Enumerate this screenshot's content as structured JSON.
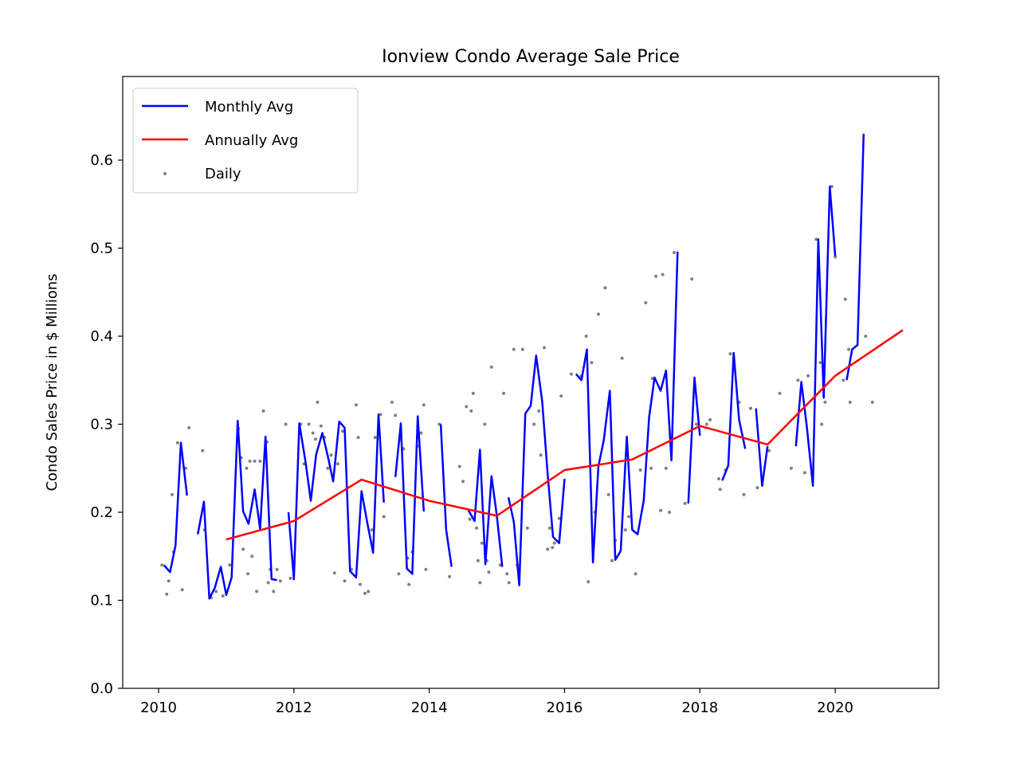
{
  "chart_data": {
    "type": "line",
    "title": "Ionview Condo Average Sale Price",
    "xlabel": "",
    "ylabel": "Condo Sales Price in $ Millions",
    "xlim": [
      2009.47,
      2021.53
    ],
    "ylim": [
      0.0,
      0.695
    ],
    "xticks": [
      2010,
      2012,
      2014,
      2016,
      2018,
      2020
    ],
    "xtick_labels": [
      "2010",
      "2012",
      "2014",
      "2016",
      "2018",
      "2020"
    ],
    "yticks": [
      0.0,
      0.1,
      0.2,
      0.3,
      0.4,
      0.5,
      0.6
    ],
    "ytick_labels": [
      "0.0",
      "0.1",
      "0.2",
      "0.3",
      "0.4",
      "0.5",
      "0.6"
    ],
    "grid": false,
    "legend": {
      "placement": "top-left",
      "entries": [
        "Monthly Avg",
        "Annually Avg",
        "Daily"
      ]
    },
    "colors": {
      "monthly": "#0000ff",
      "annual": "#ff0000",
      "daily": "#808080"
    },
    "series": [
      {
        "name": "Monthly Avg",
        "kind": "line",
        "segments": [
          [
            [
              2010.08,
              0.14
            ],
            [
              2010.17,
              0.132
            ],
            [
              2010.25,
              0.162
            ],
            [
              2010.33,
              0.279
            ],
            [
              2010.42,
              0.219
            ]
          ],
          [
            [
              2010.58,
              0.175
            ],
            [
              2010.67,
              0.212
            ],
            [
              2010.75,
              0.102
            ],
            [
              2010.83,
              0.114
            ],
            [
              2010.92,
              0.138
            ],
            [
              2011.0,
              0.106
            ],
            [
              2011.08,
              0.126
            ],
            [
              2011.17,
              0.304
            ],
            [
              2011.25,
              0.201
            ],
            [
              2011.33,
              0.187
            ],
            [
              2011.42,
              0.226
            ],
            [
              2011.5,
              0.181
            ],
            [
              2011.58,
              0.286
            ],
            [
              2011.67,
              0.124
            ],
            [
              2011.75,
              0.123
            ]
          ],
          [
            [
              2011.92,
              0.2
            ],
            [
              2012.0,
              0.124
            ],
            [
              2012.08,
              0.301
            ],
            [
              2012.17,
              0.258
            ],
            [
              2012.25,
              0.213
            ],
            [
              2012.33,
              0.266
            ],
            [
              2012.42,
              0.29
            ],
            [
              2012.5,
              0.264
            ],
            [
              2012.58,
              0.235
            ],
            [
              2012.67,
              0.303
            ],
            [
              2012.75,
              0.296
            ],
            [
              2012.83,
              0.133
            ],
            [
              2012.92,
              0.126
            ],
            [
              2013.0,
              0.224
            ],
            [
              2013.08,
              0.19
            ],
            [
              2013.17,
              0.154
            ],
            [
              2013.25,
              0.311
            ],
            [
              2013.33,
              0.211
            ]
          ],
          [
            [
              2013.5,
              0.24
            ],
            [
              2013.58,
              0.301
            ],
            [
              2013.67,
              0.136
            ],
            [
              2013.75,
              0.13
            ],
            [
              2013.83,
              0.309
            ],
            [
              2013.92,
              0.201
            ]
          ],
          [
            [
              2014.17,
              0.3
            ],
            [
              2014.25,
              0.18
            ],
            [
              2014.33,
              0.138
            ]
          ],
          [
            [
              2014.58,
              0.202
            ],
            [
              2014.67,
              0.19
            ],
            [
              2014.75,
              0.271
            ],
            [
              2014.83,
              0.141
            ],
            [
              2014.92,
              0.241
            ],
            [
              2015.0,
              0.196
            ],
            [
              2015.08,
              0.138
            ]
          ],
          [
            [
              2015.17,
              0.217
            ],
            [
              2015.25,
              0.189
            ],
            [
              2015.33,
              0.117
            ],
            [
              2015.42,
              0.312
            ],
            [
              2015.5,
              0.321
            ],
            [
              2015.58,
              0.378
            ],
            [
              2015.67,
              0.326
            ],
            [
              2015.75,
              0.244
            ],
            [
              2015.83,
              0.172
            ],
            [
              2015.92,
              0.165
            ],
            [
              2016.0,
              0.238
            ]
          ],
          [
            [
              2016.17,
              0.357
            ],
            [
              2016.25,
              0.35
            ],
            [
              2016.33,
              0.385
            ],
            [
              2016.42,
              0.143
            ],
            [
              2016.5,
              0.252
            ],
            [
              2016.58,
              0.282
            ],
            [
              2016.67,
              0.338
            ],
            [
              2016.75,
              0.146
            ],
            [
              2016.83,
              0.156
            ],
            [
              2016.92,
              0.286
            ],
            [
              2017.0,
              0.18
            ],
            [
              2017.08,
              0.175
            ],
            [
              2017.17,
              0.213
            ],
            [
              2017.25,
              0.308
            ],
            [
              2017.33,
              0.353
            ],
            [
              2017.42,
              0.338
            ],
            [
              2017.5,
              0.361
            ],
            [
              2017.58,
              0.259
            ],
            [
              2017.67,
              0.496
            ]
          ],
          [
            [
              2017.83,
              0.21
            ],
            [
              2017.92,
              0.353
            ],
            [
              2018.0,
              0.287
            ]
          ],
          [
            [
              2018.33,
              0.236
            ],
            [
              2018.42,
              0.253
            ],
            [
              2018.5,
              0.381
            ],
            [
              2018.58,
              0.305
            ],
            [
              2018.67,
              0.272
            ]
          ],
          [
            [
              2018.83,
              0.318
            ],
            [
              2018.92,
              0.23
            ],
            [
              2019.0,
              0.275
            ]
          ],
          [
            [
              2019.42,
              0.275
            ],
            [
              2019.5,
              0.348
            ],
            [
              2019.58,
              0.298
            ],
            [
              2019.67,
              0.23
            ],
            [
              2019.75,
              0.51
            ],
            [
              2019.83,
              0.33
            ],
            [
              2019.92,
              0.57
            ],
            [
              2020.0,
              0.491
            ]
          ],
          [
            [
              2020.17,
              0.35
            ],
            [
              2020.25,
              0.385
            ],
            [
              2020.33,
              0.39
            ],
            [
              2020.42,
              0.63
            ]
          ]
        ]
      },
      {
        "name": "Annually Avg",
        "kind": "line",
        "x": [
          2011,
          2012,
          2013,
          2014,
          2015,
          2016,
          2017,
          2018,
          2019,
          2020,
          2021
        ],
        "values": [
          0.169,
          0.19,
          0.237,
          0.213,
          0.196,
          0.248,
          0.26,
          0.298,
          0.277,
          0.355,
          0.407
        ]
      },
      {
        "name": "Daily",
        "kind": "scatter",
        "points": [
          [
            2010.05,
            0.14
          ],
          [
            2010.12,
            0.107
          ],
          [
            2010.15,
            0.122
          ],
          [
            2010.2,
            0.22
          ],
          [
            2010.22,
            0.155
          ],
          [
            2010.28,
            0.279
          ],
          [
            2010.35,
            0.112
          ],
          [
            2010.4,
            0.25
          ],
          [
            2010.45,
            0.296
          ],
          [
            2010.65,
            0.27
          ],
          [
            2010.68,
            0.18
          ],
          [
            2010.78,
            0.103
          ],
          [
            2010.85,
            0.11
          ],
          [
            2010.95,
            0.105
          ],
          [
            2011.05,
            0.14
          ],
          [
            2011.18,
            0.295
          ],
          [
            2011.22,
            0.262
          ],
          [
            2011.25,
            0.158
          ],
          [
            2011.3,
            0.25
          ],
          [
            2011.32,
            0.13
          ],
          [
            2011.35,
            0.258
          ],
          [
            2011.38,
            0.15
          ],
          [
            2011.42,
            0.258
          ],
          [
            2011.45,
            0.11
          ],
          [
            2011.5,
            0.258
          ],
          [
            2011.55,
            0.315
          ],
          [
            2011.6,
            0.28
          ],
          [
            2011.62,
            0.12
          ],
          [
            2011.65,
            0.135
          ],
          [
            2011.7,
            0.11
          ],
          [
            2011.75,
            0.135
          ],
          [
            2011.8,
            0.122
          ],
          [
            2011.88,
            0.3
          ],
          [
            2011.95,
            0.125
          ],
          [
            2012.1,
            0.3
          ],
          [
            2012.15,
            0.255
          ],
          [
            2012.22,
            0.3
          ],
          [
            2012.28,
            0.29
          ],
          [
            2012.32,
            0.283
          ],
          [
            2012.35,
            0.325
          ],
          [
            2012.4,
            0.298
          ],
          [
            2012.45,
            0.285
          ],
          [
            2012.5,
            0.25
          ],
          [
            2012.55,
            0.265
          ],
          [
            2012.6,
            0.131
          ],
          [
            2012.65,
            0.255
          ],
          [
            2012.72,
            0.292
          ],
          [
            2012.75,
            0.122
          ],
          [
            2012.85,
            0.135
          ],
          [
            2012.92,
            0.322
          ],
          [
            2012.95,
            0.285
          ],
          [
            2012.98,
            0.118
          ],
          [
            2013.05,
            0.108
          ],
          [
            2013.1,
            0.11
          ],
          [
            2013.15,
            0.18
          ],
          [
            2013.2,
            0.285
          ],
          [
            2013.28,
            0.311
          ],
          [
            2013.33,
            0.195
          ],
          [
            2013.45,
            0.325
          ],
          [
            2013.5,
            0.31
          ],
          [
            2013.55,
            0.13
          ],
          [
            2013.58,
            0.282
          ],
          [
            2013.62,
            0.272
          ],
          [
            2013.68,
            0.148
          ],
          [
            2013.7,
            0.118
          ],
          [
            2013.75,
            0.155
          ],
          [
            2013.82,
            0.275
          ],
          [
            2013.88,
            0.29
          ],
          [
            2013.92,
            0.322
          ],
          [
            2013.95,
            0.135
          ],
          [
            2014.15,
            0.3
          ],
          [
            2014.3,
            0.127
          ],
          [
            2014.45,
            0.252
          ],
          [
            2014.5,
            0.235
          ],
          [
            2014.55,
            0.32
          ],
          [
            2014.6,
            0.192
          ],
          [
            2014.62,
            0.315
          ],
          [
            2014.65,
            0.335
          ],
          [
            2014.7,
            0.182
          ],
          [
            2014.72,
            0.145
          ],
          [
            2014.75,
            0.12
          ],
          [
            2014.78,
            0.165
          ],
          [
            2014.82,
            0.3
          ],
          [
            2014.85,
            0.145
          ],
          [
            2014.88,
            0.132
          ],
          [
            2014.92,
            0.365
          ],
          [
            2015.05,
            0.14
          ],
          [
            2015.1,
            0.335
          ],
          [
            2015.15,
            0.13
          ],
          [
            2015.18,
            0.12
          ],
          [
            2015.25,
            0.385
          ],
          [
            2015.3,
            0.14
          ],
          [
            2015.38,
            0.385
          ],
          [
            2015.45,
            0.182
          ],
          [
            2015.55,
            0.3
          ],
          [
            2015.62,
            0.315
          ],
          [
            2015.65,
            0.265
          ],
          [
            2015.7,
            0.387
          ],
          [
            2015.75,
            0.158
          ],
          [
            2015.78,
            0.182
          ],
          [
            2015.82,
            0.16
          ],
          [
            2015.85,
            0.165
          ],
          [
            2015.92,
            0.193
          ],
          [
            2015.95,
            0.332
          ],
          [
            2016.1,
            0.357
          ],
          [
            2016.25,
            0.355
          ],
          [
            2016.32,
            0.4
          ],
          [
            2016.35,
            0.121
          ],
          [
            2016.4,
            0.37
          ],
          [
            2016.45,
            0.2
          ],
          [
            2016.5,
            0.425
          ],
          [
            2016.6,
            0.455
          ],
          [
            2016.65,
            0.22
          ],
          [
            2016.7,
            0.145
          ],
          [
            2016.75,
            0.168
          ],
          [
            2016.85,
            0.375
          ],
          [
            2016.9,
            0.18
          ],
          [
            2016.95,
            0.195
          ],
          [
            2017.05,
            0.13
          ],
          [
            2017.12,
            0.248
          ],
          [
            2017.2,
            0.438
          ],
          [
            2017.28,
            0.25
          ],
          [
            2017.3,
            0.352
          ],
          [
            2017.35,
            0.468
          ],
          [
            2017.42,
            0.202
          ],
          [
            2017.45,
            0.47
          ],
          [
            2017.5,
            0.25
          ],
          [
            2017.55,
            0.2
          ],
          [
            2017.62,
            0.495
          ],
          [
            2017.78,
            0.21
          ],
          [
            2017.88,
            0.465
          ],
          [
            2017.95,
            0.3
          ],
          [
            2018.1,
            0.3
          ],
          [
            2018.15,
            0.305
          ],
          [
            2018.28,
            0.238
          ],
          [
            2018.3,
            0.226
          ],
          [
            2018.38,
            0.248
          ],
          [
            2018.45,
            0.38
          ],
          [
            2018.58,
            0.325
          ],
          [
            2018.65,
            0.22
          ],
          [
            2018.75,
            0.318
          ],
          [
            2018.85,
            0.228
          ],
          [
            2019.02,
            0.27
          ],
          [
            2019.18,
            0.335
          ],
          [
            2019.35,
            0.25
          ],
          [
            2019.45,
            0.35
          ],
          [
            2019.55,
            0.245
          ],
          [
            2019.6,
            0.355
          ],
          [
            2019.72,
            0.51
          ],
          [
            2019.78,
            0.37
          ],
          [
            2019.8,
            0.3
          ],
          [
            2019.85,
            0.325
          ],
          [
            2019.95,
            0.57
          ],
          [
            2020.0,
            0.49
          ],
          [
            2020.12,
            0.35
          ],
          [
            2020.15,
            0.442
          ],
          [
            2020.2,
            0.385
          ],
          [
            2020.22,
            0.325
          ],
          [
            2020.45,
            0.4
          ],
          [
            2020.55,
            0.325
          ]
        ]
      }
    ]
  }
}
